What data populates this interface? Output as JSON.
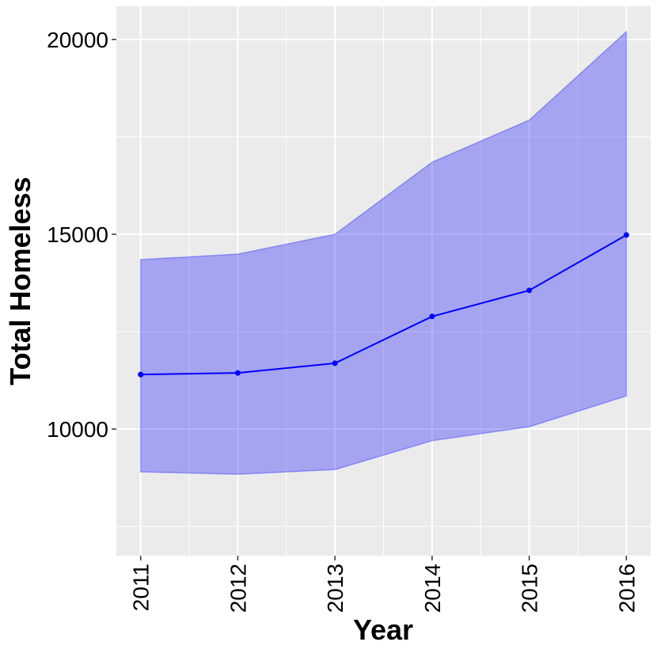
{
  "chart_data": {
    "type": "line",
    "x_label": "Year",
    "y_label": "Total Homeless",
    "x": [
      2011,
      2012,
      2013,
      2014,
      2015,
      2016
    ],
    "series": [
      {
        "color": "#0000ff",
        "values": [
          11400,
          11440,
          11690,
          12890,
          13560,
          14980
        ],
        "lower": [
          8900,
          8840,
          8960,
          9700,
          10060,
          10850
        ],
        "upper": [
          14350,
          14490,
          15000,
          16850,
          17930,
          20200
        ]
      }
    ],
    "xlim": [
      2010.75,
      2016.25
    ],
    "xticks": [
      2011,
      2012,
      2013,
      2014,
      2015,
      2016
    ],
    "ylim": [
      6750,
      20850
    ],
    "yticks": [
      10000,
      15000,
      20000
    ],
    "grid": true
  }
}
